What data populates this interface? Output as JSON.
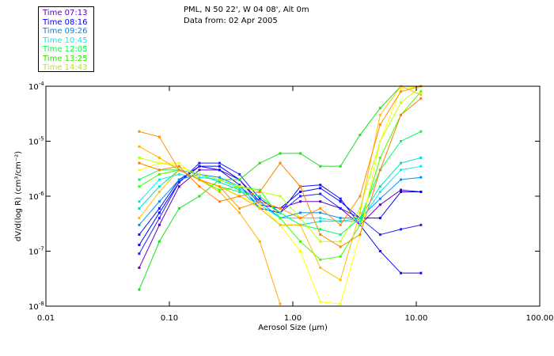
{
  "header": {
    "title_line1": "PML, N 50 22', W 04 08', Alt 0m",
    "title_line2": "Data from: 02 Apr 2005"
  },
  "legend": [
    {
      "label": "Time 07:13",
      "color": "#6000c0"
    },
    {
      "label": "Time 08:16",
      "color": "#0000ff"
    },
    {
      "label": "Time 09:26",
      "color": "#0080ff"
    },
    {
      "label": "Time 10:45",
      "color": "#00f0f0"
    },
    {
      "label": "Time 12:05",
      "color": "#00ff40"
    },
    {
      "label": "Time 13:25",
      "color": "#30e000"
    },
    {
      "label": "Time 14:43",
      "color": "#b0f000"
    }
  ],
  "chart_data": {
    "type": "line",
    "xlabel": "Aerosol Size (µm)",
    "ylabel": "dV/d(log R)  (cm³/cm⁻²)",
    "xscale": "log",
    "yscale": "log",
    "xlim": [
      0.01,
      100
    ],
    "ylim": [
      1e-08,
      0.0001
    ],
    "xticks": [
      {
        "v": 0.01,
        "label": "0.01"
      },
      {
        "v": 0.1,
        "label": "0.10"
      },
      {
        "v": 1,
        "label": "1.00"
      },
      {
        "v": 10,
        "label": "10.00"
      },
      {
        "v": 100,
        "label": "100.00"
      }
    ],
    "yticks": [
      {
        "v": 0.0001,
        "base": "10",
        "exp": "-4"
      },
      {
        "v": 1e-05,
        "base": "10",
        "exp": "-5"
      },
      {
        "v": 1e-06,
        "base": "10",
        "exp": "-6"
      },
      {
        "v": 1e-07,
        "base": "10",
        "exp": "-7"
      },
      {
        "v": 1e-08,
        "base": "10",
        "exp": "-8"
      }
    ],
    "x": [
      0.057,
      0.083,
      0.12,
      0.175,
      0.255,
      0.37,
      0.54,
      0.79,
      1.15,
      1.67,
      2.43,
      3.5,
      5.1,
      7.5,
      10.9
    ],
    "series": [
      {
        "color": "#6000c0",
        "values": [
          5e-08,
          3e-07,
          1.5e-06,
          3e-06,
          3e-06,
          2e-06,
          7e-07,
          6e-07,
          8e-07,
          8e-07,
          6e-07,
          3e-07,
          7e-07,
          1.3e-06,
          1.2e-06
        ]
      },
      {
        "color": "#0000ff",
        "values": [
          1.3e-07,
          5e-07,
          1.8e-06,
          3.5e-06,
          3.5e-06,
          2e-06,
          8e-07,
          6e-07,
          1.2e-06,
          1.4e-06,
          8e-07,
          4e-07,
          4e-07,
          1.2e-06,
          1.2e-06
        ]
      },
      {
        "color": "#1010f0",
        "values": [
          2e-07,
          6e-07,
          2e-06,
          3.5e-06,
          3e-06,
          1.6e-06,
          6e-07,
          5e-07,
          1.5e-06,
          1.6e-06,
          9e-07,
          3e-07,
          1e-07,
          4e-08,
          4e-08
        ]
      },
      {
        "color": "#2020ff",
        "values": [
          9e-08,
          4e-07,
          1.8e-06,
          4e-06,
          4e-06,
          2.5e-06,
          9e-07,
          5e-07,
          1e-06,
          1.1e-06,
          6e-07,
          4e-07,
          2e-07,
          2.5e-07,
          3e-07
        ]
      },
      {
        "color": "#0090ff",
        "values": [
          3e-07,
          8e-07,
          2e-06,
          2.5e-06,
          2.2e-06,
          1.5e-06,
          8e-07,
          4e-07,
          5e-07,
          5e-07,
          4e-07,
          4e-07,
          9e-07,
          2e-06,
          2.2e-06
        ]
      },
      {
        "color": "#00f0f0",
        "values": [
          8e-07,
          2e-06,
          2.5e-06,
          2.2e-06,
          2e-06,
          1.4e-06,
          7e-07,
          4e-07,
          4e-07,
          4e-07,
          3.5e-07,
          3.5e-07,
          1.2e-06,
          3e-06,
          3.5e-06
        ]
      },
      {
        "color": "#00e0c0",
        "values": [
          6e-07,
          1.5e-06,
          3e-06,
          2.5e-06,
          1.8e-06,
          1.3e-06,
          6e-07,
          3e-07,
          3e-07,
          3.5e-07,
          3.5e-07,
          4e-07,
          1.5e-06,
          4e-06,
          5e-06
        ]
      },
      {
        "color": "#00ff60",
        "values": [
          2e-06,
          3e-06,
          3e-06,
          2e-06,
          1.5e-06,
          1.2e-06,
          1e-06,
          5e-07,
          3e-07,
          2.5e-07,
          2e-07,
          4e-07,
          3e-06,
          1e-05,
          1.5e-05
        ]
      },
      {
        "color": "#20e020",
        "values": [
          2e-08,
          1.5e-07,
          6e-07,
          1e-06,
          2e-06,
          2e-06,
          4e-06,
          6e-06,
          6e-06,
          3.5e-06,
          3.5e-06,
          1.3e-05,
          4e-05,
          0.0001,
          0.0001
        ]
      },
      {
        "color": "#40ff00",
        "values": [
          1.5e-06,
          2.5e-06,
          3e-06,
          2e-06,
          1.3e-06,
          1.5e-06,
          1.3e-06,
          4e-07,
          1.5e-07,
          7e-08,
          8e-08,
          3e-07,
          5e-06,
          3e-05,
          8e-05
        ]
      },
      {
        "color": "#c0ff00",
        "values": [
          5e-06,
          4e-06,
          3.5e-06,
          2.5e-06,
          2e-06,
          1.5e-06,
          1.2e-06,
          1e-06,
          4e-07,
          1.5e-07,
          1.5e-07,
          6e-07,
          1e-05,
          5e-05,
          0.0001
        ]
      },
      {
        "color": "#ffff00",
        "values": [
          3e-06,
          4e-06,
          4e-06,
          2e-06,
          1.5e-06,
          1e-06,
          7e-07,
          3e-07,
          1e-07,
          1.2e-08,
          1.1e-08,
          2e-07,
          1e-05,
          9e-05,
          0.0001
        ]
      },
      {
        "color": "#ffc000",
        "values": [
          4e-07,
          1.2e-06,
          3e-06,
          2e-06,
          1.5e-06,
          1e-06,
          6e-07,
          3e-07,
          3e-07,
          5e-08,
          3e-08,
          5e-07,
          3e-05,
          0.0001,
          7e-05
        ]
      },
      {
        "color": "#ffb000",
        "values": [
          8e-06,
          5e-06,
          3e-06,
          2e-06,
          1.2e-06,
          5e-07,
          1.5e-07,
          1.1e-08,
          null,
          null,
          null,
          null,
          null,
          null,
          null
        ]
      },
      {
        "color": "#ff8000",
        "values": [
          4e-06,
          3e-06,
          3.5e-06,
          1.5e-06,
          8e-07,
          1e-06,
          1.2e-06,
          4e-06,
          1.5e-06,
          2e-07,
          1.2e-07,
          2e-07,
          3e-06,
          3e-05,
          6e-05
        ]
      },
      {
        "color": "#ff9000",
        "values": [
          1.5e-05,
          1.2e-05,
          3e-06,
          2e-06,
          1.5e-06,
          6e-07,
          8e-07,
          6e-07,
          4e-07,
          6e-07,
          3e-07,
          1e-06,
          2e-05,
          8e-05,
          0.0001
        ]
      }
    ]
  }
}
